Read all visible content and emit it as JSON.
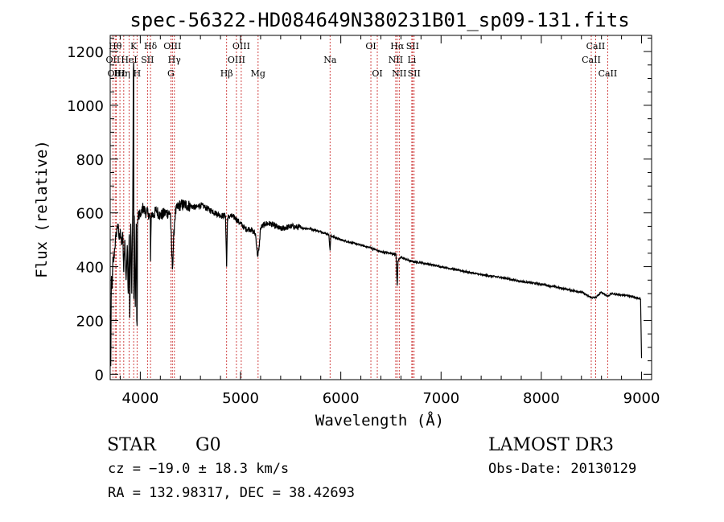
{
  "chart_data": {
    "type": "line",
    "title": "spec-56322-HD084649N380231B01_sp09-131.fits",
    "xlabel": "Wavelength (Å)",
    "ylabel": "Flux (relative)",
    "xlim": [
      3700,
      9100
    ],
    "ylim": [
      -20,
      1260
    ],
    "xticks": [
      4000,
      5000,
      6000,
      7000,
      8000,
      9000
    ],
    "xtick_labels": [
      "4000",
      "5000",
      "6000",
      "7000",
      "8000",
      "9000"
    ],
    "yticks": [
      0,
      200,
      400,
      600,
      800,
      1000,
      1200
    ],
    "ytick_labels": [
      "0",
      "200",
      "400",
      "600",
      "800",
      "1000",
      "1200"
    ],
    "series": [
      {
        "name": "spectrum",
        "x": [
          3700,
          3706,
          3712,
          3720,
          3728,
          3735,
          3745,
          3760,
          3775,
          3790,
          3800,
          3812,
          3825,
          3835,
          3845,
          3858,
          3870,
          3880,
          3889,
          3895,
          3905,
          3915,
          3925,
          3930,
          3934,
          3936,
          3940,
          3950,
          3960,
          3965,
          3968,
          3972,
          3980,
          3990,
          4000,
          4010,
          4020,
          4040,
          4060,
          4080,
          4100,
          4102,
          4110,
          4130,
          4160,
          4200,
          4250,
          4300,
          4320,
          4340,
          4350,
          4370,
          4400,
          4450,
          4500,
          4560,
          4600,
          4650,
          4700,
          4750,
          4800,
          4850,
          4861,
          4870,
          4900,
          4950,
          5000,
          5050,
          5100,
          5150,
          5170,
          5183,
          5200,
          5250,
          5300,
          5400,
          5500,
          5600,
          5700,
          5800,
          5880,
          5893,
          5900,
          6000,
          6100,
          6200,
          6300,
          6400,
          6500,
          6550,
          6563,
          6570,
          6600,
          6700,
          6800,
          7000,
          7200,
          7400,
          7600,
          7800,
          8000,
          8200,
          8400,
          8498,
          8542,
          8600,
          8662,
          8700,
          8800,
          8900,
          8990,
          9000
        ],
        "y": [
          220,
          30,
          360,
          320,
          430,
          420,
          470,
          520,
          560,
          500,
          540,
          480,
          520,
          380,
          500,
          350,
          480,
          300,
          520,
          210,
          560,
          300,
          620,
          1120,
          1160,
          280,
          590,
          250,
          560,
          200,
          180,
          540,
          600,
          580,
          600,
          590,
          620,
          610,
          600,
          600,
          580,
          420,
          600,
          590,
          610,
          590,
          600,
          600,
          390,
          560,
          600,
          620,
          630,
          630,
          625,
          620,
          630,
          620,
          610,
          600,
          590,
          590,
          400,
          580,
          590,
          580,
          560,
          540,
          540,
          520,
          440,
          460,
          545,
          560,
          560,
          540,
          550,
          545,
          540,
          530,
          520,
          460,
          515,
          500,
          490,
          480,
          470,
          455,
          450,
          445,
          330,
          420,
          435,
          420,
          415,
          400,
          385,
          370,
          360,
          345,
          335,
          320,
          305,
          285,
          285,
          305,
          290,
          300,
          295,
          290,
          280,
          60
        ]
      }
    ],
    "lines": [
      {
        "label": "OII",
        "wavelength": 3727,
        "row": 2
      },
      {
        "label": "Hθ",
        "wavelength": 3750,
        "row": 1
      },
      {
        "label": "OIII",
        "wavelength": 3760,
        "row": 3
      },
      {
        "label": "Hε",
        "wavelength": 3797,
        "row": 3
      },
      {
        "label": "Hη",
        "wavelength": 3835,
        "row": 3
      },
      {
        "label": "HeI",
        "wavelength": 3889,
        "row": 2
      },
      {
        "label": "K",
        "wavelength": 3934,
        "row": 1
      },
      {
        "label": "H",
        "wavelength": 3968,
        "row": 3
      },
      {
        "label": "SII",
        "wavelength": 4072,
        "row": 2
      },
      {
        "label": "Hδ",
        "wavelength": 4102,
        "row": 1
      },
      {
        "label": "G",
        "wavelength": 4305,
        "row": 3
      },
      {
        "label": "OIII",
        "wavelength": 4320,
        "row": 1
      },
      {
        "label": "Hγ",
        "wavelength": 4340,
        "row": 2
      },
      {
        "label": "Hβ",
        "wavelength": 4861,
        "row": 3
      },
      {
        "label": "OIII",
        "wavelength": 4959,
        "row": 2
      },
      {
        "label": "OIII",
        "wavelength": 5007,
        "row": 1
      },
      {
        "label": "Mg",
        "wavelength": 5175,
        "row": 3
      },
      {
        "label": "Na",
        "wavelength": 5893,
        "row": 2
      },
      {
        "label": "OI",
        "wavelength": 6300,
        "row": 1
      },
      {
        "label": "OI",
        "wavelength": 6364,
        "row": 3
      },
      {
        "label": "NII",
        "wavelength": 6548,
        "row": 2
      },
      {
        "label": "Hα",
        "wavelength": 6563,
        "row": 1
      },
      {
        "label": "NII",
        "wavelength": 6583,
        "row": 3
      },
      {
        "label": "Li",
        "wavelength": 6708,
        "row": 2
      },
      {
        "label": "SII",
        "wavelength": 6716,
        "row": 1
      },
      {
        "label": "SII",
        "wavelength": 6731,
        "row": 3
      },
      {
        "label": "CaII",
        "wavelength": 8498,
        "row": 2
      },
      {
        "label": "CaII",
        "wavelength": 8542,
        "row": 1
      },
      {
        "label": "CaII",
        "wavelength": 8662,
        "row": 3
      }
    ],
    "colors": {
      "spectrum": "#000000",
      "lines": "#cc3333",
      "axis": "#000000"
    }
  },
  "info": {
    "class_label": "STAR",
    "subclass": "G0",
    "survey": "LAMOST DR3",
    "cz": "cz = −19.0 ± 18.3 km/s",
    "obs_date": "Obs-Date: 20130129",
    "coords": "RA = 132.98317, DEC =  38.42693"
  }
}
